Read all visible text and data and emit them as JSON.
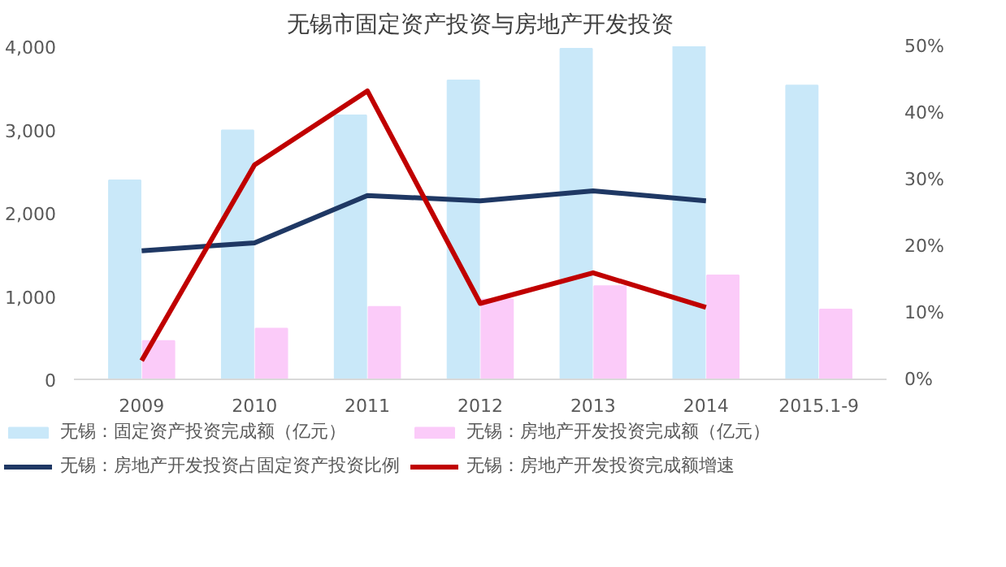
{
  "chart_data": {
    "type": "bar",
    "title": "无锡市固定资产投资与房地产开发投资",
    "categories": [
      "2009",
      "2010",
      "2011",
      "2012",
      "2013",
      "2014",
      "2015.1-9"
    ],
    "series": [
      {
        "name": "无锡：固定资产投资完成额（亿元）",
        "color": "#c9e8f9",
        "values": [
          2390,
          2990,
          3170,
          3590,
          3970,
          4000,
          3530
        ]
      },
      {
        "name": "无锡：房地产开发投资完成额（亿元）",
        "color": "#fbcbf9",
        "values": [
          460,
          610,
          870,
          960,
          1120,
          1250,
          840
        ]
      },
      {
        "name": "无锡：房地产开发投资占固定资产投资比例",
        "type": "line",
        "axis": "y2",
        "color": "#1f3864",
        "values": [
          19.3,
          20.5,
          27.6,
          26.8,
          28.3,
          26.8,
          null
        ]
      },
      {
        "name": "无锡：房地产开发投资完成额增速",
        "type": "line",
        "axis": "y2",
        "color": "#c00000",
        "values": [
          2.8,
          32.2,
          43.3,
          11.4,
          16.0,
          10.8,
          null
        ]
      }
    ],
    "ylim": [
      0,
      4000
    ],
    "yticks": [
      {
        "value": 0,
        "label": "0"
      },
      {
        "value": 1000,
        "label": "1,000"
      },
      {
        "value": 2000,
        "label": "2,000"
      },
      {
        "value": 3000,
        "label": "3,000"
      },
      {
        "value": 4000,
        "label": "4,000"
      }
    ],
    "y2lim": [
      0,
      50
    ],
    "y2ticks": [
      {
        "value": 0,
        "label": "0%"
      },
      {
        "value": 10,
        "label": "10%"
      },
      {
        "value": 20,
        "label": "20%"
      },
      {
        "value": 30,
        "label": "30%"
      },
      {
        "value": 40,
        "label": "40%"
      },
      {
        "value": 50,
        "label": "50%"
      }
    ],
    "grid": false,
    "legend": "bottom",
    "line_style": "solid"
  }
}
